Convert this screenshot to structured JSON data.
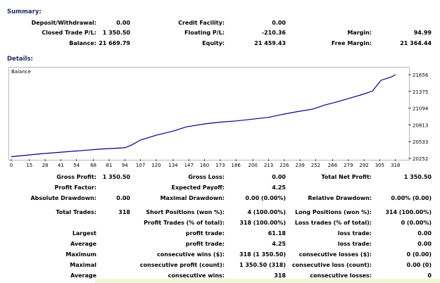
{
  "summary": {
    "heading": "Summary:",
    "deposit_label": "Deposit/Withdrawal:",
    "deposit_value": "0.00",
    "credit_label": "Credit Facility:",
    "credit_value": "0.00",
    "closed_label": "Closed Trade P/L:",
    "closed_value": "1 350.50",
    "floating_label": "Floating P/L:",
    "floating_value": "-210.36",
    "margin_label": "Margin:",
    "margin_value": "94.99",
    "balance_label": "Balance:",
    "balance_value": "21 669.79",
    "equity_label": "Equity:",
    "equity_value": "21 459.43",
    "free_margin_label": "Free Margin:",
    "free_margin_value": "21 364.44"
  },
  "details": {
    "heading": "Details:",
    "chart_legend": "Balance",
    "line_color": "#00008b"
  },
  "chart_data": {
    "type": "line",
    "title": "",
    "series": [
      {
        "name": "Balance",
        "x": [
          0,
          10,
          25,
          50,
          75,
          94,
          100,
          107,
          120,
          134,
          145,
          160,
          173,
          186,
          200,
          213,
          222,
          235,
          250,
          260,
          270,
          280,
          290,
          299,
          306,
          315,
          318
        ],
        "values": [
          20280,
          20300,
          20330,
          20370,
          20410,
          20430,
          20480,
          20560,
          20640,
          20710,
          20780,
          20830,
          20860,
          20880,
          20910,
          20940,
          20980,
          21030,
          21080,
          21150,
          21200,
          21260,
          21320,
          21380,
          21560,
          21620,
          21656
        ]
      }
    ],
    "x_ticks": [
      "0",
      "15",
      "28",
      "41",
      "54",
      "68",
      "81",
      "94",
      "107",
      "120",
      "134",
      "147",
      "160",
      "173",
      "186",
      "200",
      "213",
      "226",
      "239",
      "252",
      "266",
      "279",
      "292",
      "305",
      "318"
    ],
    "y_ticks": [
      "21656",
      "21375",
      "21094",
      "20813",
      "20533",
      "20252"
    ],
    "xlim": [
      0,
      324
    ],
    "ylim": [
      20252,
      21656
    ]
  },
  "stats": {
    "gross_profit_label": "Gross Profit:",
    "gross_profit_value": "1 350.50",
    "gross_loss_label": "Gross Loss:",
    "gross_loss_value": "0.00",
    "total_net_profit_label": "Total Net Profit:",
    "total_net_profit_value": "1 350.50",
    "profit_factor_label": "Profit Factor:",
    "expected_payoff_label": "Expected Payoff:",
    "expected_payoff_value": "4.25",
    "absolute_dd_label": "Absolute Drawdown:",
    "absolute_dd_value": "0.00",
    "maximal_dd_label": "Maximal Drawdown:",
    "maximal_dd_value": "0.00 (0.00%)",
    "relative_dd_label": "Relative Drawdown:",
    "relative_dd_value": "0.00% (0.00)",
    "total_trades_label": "Total Trades:",
    "total_trades_value": "318",
    "short_label": "Short Positions (won %):",
    "short_value": "4 (100.00%)",
    "long_label": "Long Positions (won %):",
    "long_value": "314 (100.00%)",
    "profit_trades_label": "Profit Trades (% of total):",
    "profit_trades_value": "318 (100.00%)",
    "loss_trades_label": "Loss trades (% of total):",
    "loss_trades_value": "0 (0.00%)",
    "largest_label": "Largest",
    "largest_profit_label": "profit trade:",
    "largest_profit_value": "61.18",
    "largest_loss_label": "loss trade:",
    "largest_loss_value": "0.00",
    "average_label": "Average",
    "average_profit_label": "profit trade:",
    "average_profit_value": "4.25",
    "average_loss_label": "loss trade:",
    "average_loss_value": "0.00",
    "maximum_label": "Maximum",
    "max_cons_wins_label": "consecutive wins ($):",
    "max_cons_wins_value": "318 (1 350.50)",
    "max_cons_losses_label": "consecutive losses ($):",
    "max_cons_losses_value": "0 (0.00)",
    "maximal_label": "Maximal",
    "maximal_profit_label": "consecutive profit (count):",
    "maximal_profit_value": "1 350.50 (318)",
    "maximal_loss_label": "consecutive loss (count):",
    "maximal_loss_value": "0.00 (0)",
    "average2_label": "Average",
    "avg_cons_wins_label": "consecutive wins:",
    "avg_cons_wins_value": "318",
    "avg_cons_losses_label": "consecutive losses:",
    "avg_cons_losses_value": "0"
  }
}
